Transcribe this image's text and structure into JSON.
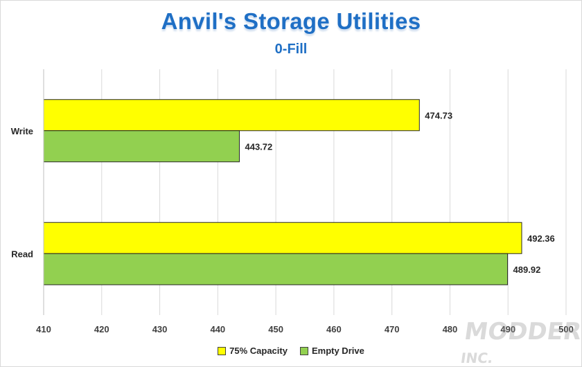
{
  "chart_data": {
    "type": "bar",
    "orientation": "horizontal",
    "title": "Anvil's Storage Utilities",
    "subtitle": "0-Fill",
    "categories": [
      "Write",
      "Read"
    ],
    "series": [
      {
        "name": "75% Capacity",
        "color": "#ffff00",
        "values": [
          474.73,
          492.36
        ],
        "labels": [
          "474.73",
          "492.36"
        ]
      },
      {
        "name": "Empty Drive",
        "color": "#92d050",
        "values": [
          443.72,
          489.92
        ],
        "labels": [
          "443.72",
          "489.92"
        ]
      }
    ],
    "xlim": [
      410,
      500
    ],
    "xticks": [
      410,
      420,
      430,
      440,
      450,
      460,
      470,
      480,
      490,
      500
    ],
    "grid": true,
    "legend_position": "bottom"
  }
}
